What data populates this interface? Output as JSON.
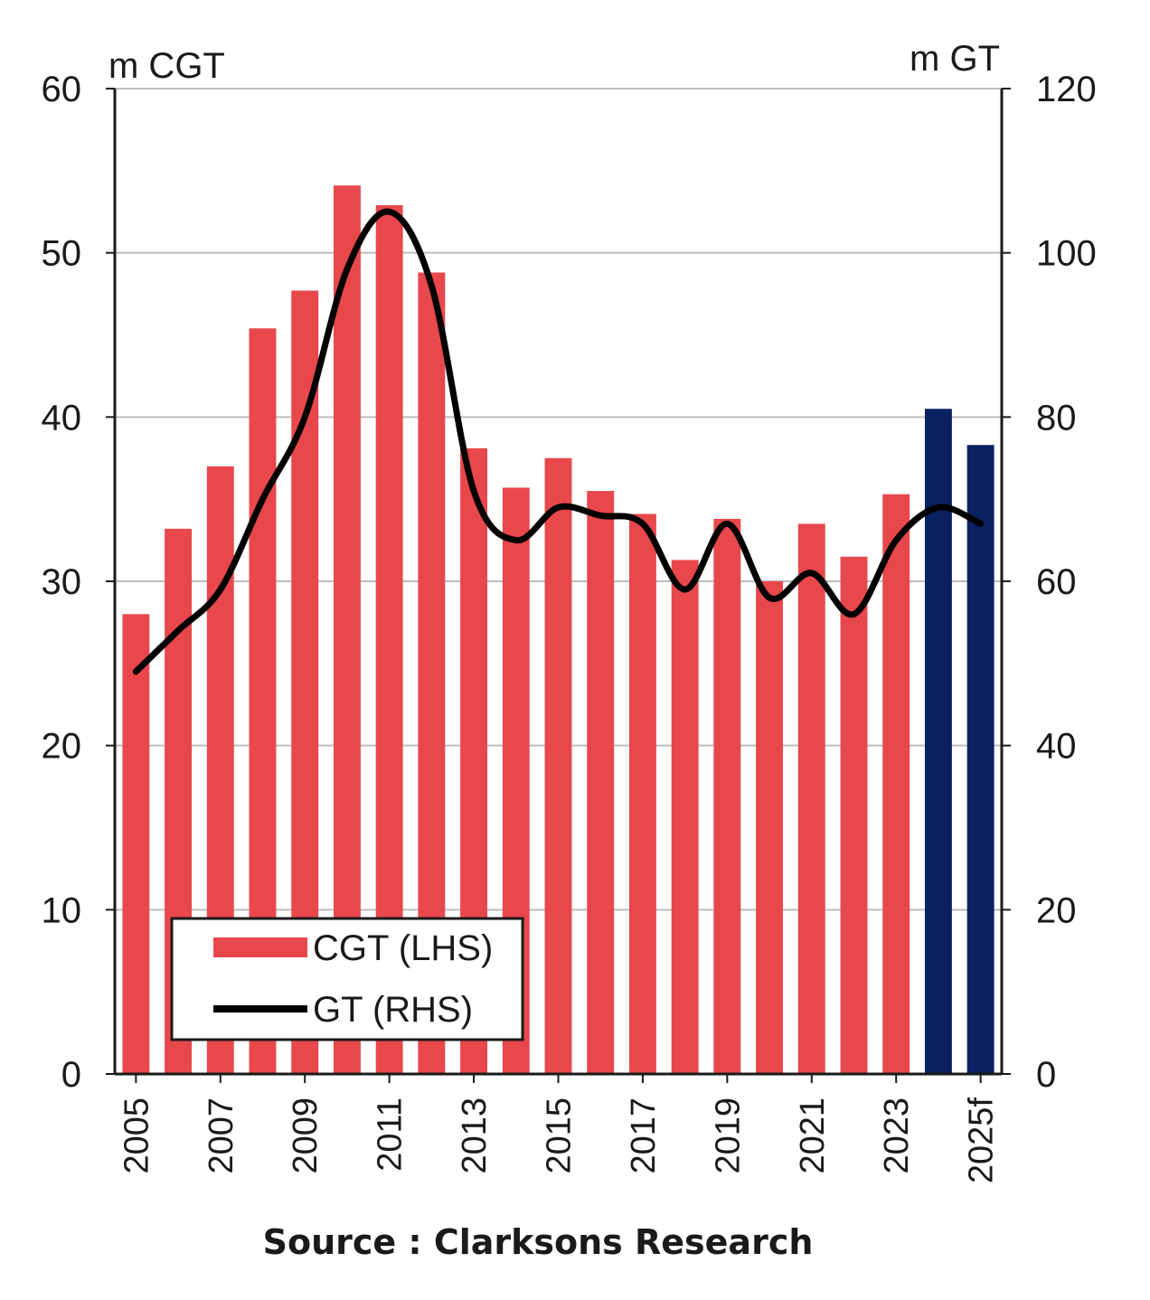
{
  "chart_data": {
    "type": "bar",
    "left_axis_label": "m CGT",
    "right_axis_label": "m GT",
    "left_ylim": [
      0,
      60
    ],
    "right_ylim": [
      0,
      120
    ],
    "left_ticks": [
      "0",
      "10",
      "20",
      "30",
      "40",
      "50",
      "60"
    ],
    "right_ticks": [
      "0",
      "20",
      "40",
      "60",
      "80",
      "100",
      "120"
    ],
    "x_tick_labels": [
      "2005",
      "2007",
      "2009",
      "2011",
      "2013",
      "2015",
      "2017",
      "2019",
      "2021",
      "2023",
      "2025f"
    ],
    "categories": [
      "2005",
      "2006",
      "2007",
      "2008",
      "2009",
      "2010",
      "2011",
      "2012",
      "2013",
      "2014",
      "2015",
      "2016",
      "2017",
      "2018",
      "2019",
      "2020",
      "2021",
      "2022",
      "2023",
      "2024",
      "2025f"
    ],
    "grid": true,
    "legend_position": "bottom-left",
    "series": [
      {
        "name": "CGT (LHS)",
        "type": "bar",
        "axis": "left",
        "values": [
          28.0,
          33.2,
          37.0,
          45.4,
          47.7,
          54.1,
          52.9,
          48.8,
          38.1,
          35.7,
          37.5,
          35.5,
          34.1,
          31.3,
          33.8,
          30.0,
          33.5,
          31.5,
          35.3,
          40.5,
          38.3
        ],
        "colors": [
          "#e8474c",
          "#e8474c",
          "#e8474c",
          "#e8474c",
          "#e8474c",
          "#e8474c",
          "#e8474c",
          "#e8474c",
          "#e8474c",
          "#e8474c",
          "#e8474c",
          "#e8474c",
          "#e8474c",
          "#e8474c",
          "#e8474c",
          "#e8474c",
          "#e8474c",
          "#e8474c",
          "#e8474c",
          "#0b2060",
          "#0b2060"
        ]
      },
      {
        "name": "GT (RHS)",
        "type": "line",
        "axis": "right",
        "color": "#000000",
        "values": [
          49,
          54,
          59,
          70,
          80,
          98,
          105,
          96,
          71,
          65,
          69,
          68,
          67,
          59,
          67,
          58,
          61,
          56,
          65,
          69,
          67
        ]
      }
    ]
  },
  "source": "Source : Clarksons Research"
}
